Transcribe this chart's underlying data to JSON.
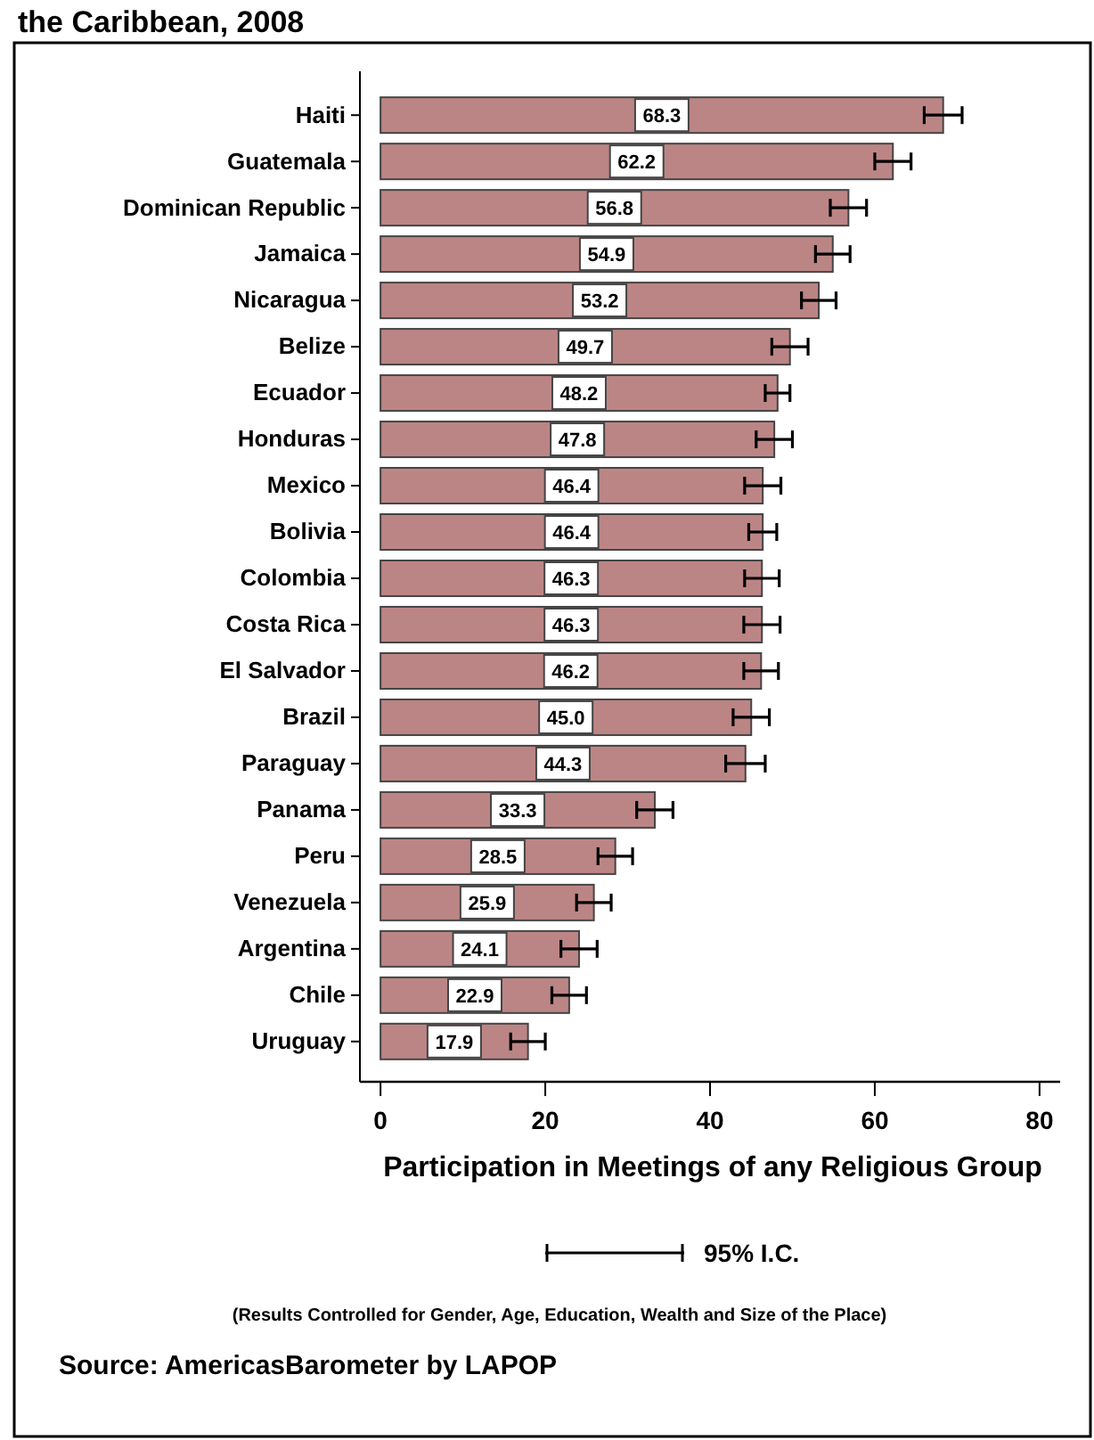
{
  "chart_data": {
    "type": "bar",
    "orientation": "horizontal",
    "title": "the Caribbean, 2008",
    "xlabel": "Participation in Meetings of any Religious Group",
    "categories": [
      "Haiti",
      "Guatemala",
      "Dominican Republic",
      "Jamaica",
      "Nicaragua",
      "Belize",
      "Ecuador",
      "Honduras",
      "Mexico",
      "Bolivia",
      "Colombia",
      "Costa Rica",
      "El Salvador",
      "Brazil",
      "Paraguay",
      "Panama",
      "Peru",
      "Venezuela",
      "Argentina",
      "Chile",
      "Uruguay"
    ],
    "values": [
      68.3,
      62.2,
      56.8,
      54.9,
      53.2,
      49.7,
      48.2,
      47.8,
      46.4,
      46.4,
      46.3,
      46.3,
      46.2,
      45.0,
      44.3,
      33.3,
      28.5,
      25.9,
      24.1,
      22.9,
      17.9
    ],
    "value_labels": [
      "68.3",
      "62.2",
      "56.8",
      "54.9",
      "53.2",
      "49.7",
      "48.2",
      "47.8",
      "46.4",
      "46.4",
      "46.3",
      "46.3",
      "46.2",
      "45.0",
      "44.3",
      "33.3",
      "28.5",
      "25.9",
      "24.1",
      "22.9",
      "17.9"
    ],
    "errors": [
      2.3,
      2.2,
      2.2,
      2.1,
      2.1,
      2.2,
      1.5,
      2.2,
      2.2,
      1.7,
      2.1,
      2.2,
      2.1,
      2.2,
      2.4,
      2.2,
      2.1,
      2.1,
      2.2,
      2.1,
      2.1
    ],
    "color": "#bc8585",
    "xlim": [
      -2.5,
      82.5
    ],
    "xticks": [
      0,
      20,
      40,
      60,
      80
    ],
    "grid": false,
    "legend_title": "95% I.C.",
    "annotations": [
      "(Results Controlled for Gender, Age, Education, Wealth and Size of the Place)",
      "Source: AmericasBarometer by  LAPOP"
    ]
  }
}
